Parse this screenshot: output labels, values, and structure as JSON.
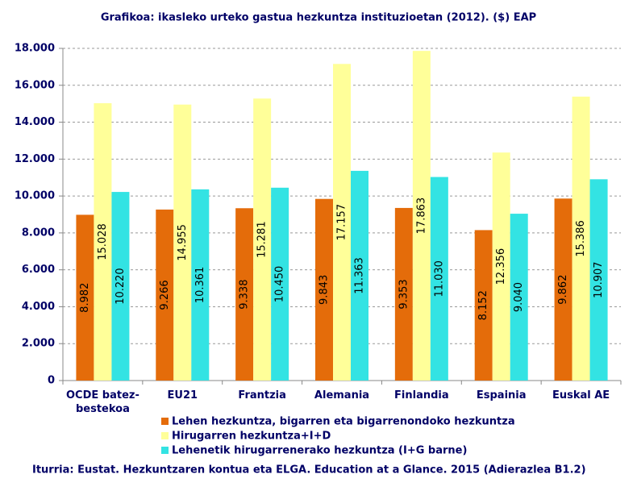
{
  "chart_data": {
    "type": "bar",
    "title": "Grafikoa: ikasleko urteko gastua hezkuntza instituzioetan (2012). ($) EAP",
    "source": "Iturria: Eustat. Hezkuntzaren kontua eta ELGA. Education at a Glance. 2015 (Adierazlea B1.2)",
    "categories": [
      "OCDE batez-bestekoa",
      "EU21",
      "Frantzia",
      "Alemania",
      "Finlandia",
      "Espainia",
      "Euskal AE"
    ],
    "series": [
      {
        "name": "Lehen hezkuntza, bigarren eta bigarrenondoko hezkuntza",
        "color": "#e46c0a",
        "values": [
          8982,
          9266,
          9338,
          9843,
          9353,
          8152,
          9862
        ],
        "value_labels": [
          "8.982",
          "9.266",
          "9.338",
          "9.843",
          "9.353",
          "8.152",
          "9.862"
        ]
      },
      {
        "name": "Hirugarren hezkuntza+I+D",
        "color": "#ffff99",
        "values": [
          15028,
          14955,
          15281,
          17157,
          17863,
          12356,
          15386
        ],
        "value_labels": [
          "15.028",
          "14.955",
          "15.281",
          "17.157",
          "17.863",
          "12.356",
          "15.386"
        ]
      },
      {
        "name": "Lehenetik hirugarrenerako hezkuntza (I+G barne)",
        "color": "#33e3e3",
        "values": [
          10220,
          10361,
          10450,
          11363,
          11030,
          9040,
          10907
        ],
        "value_labels": [
          "10.220",
          "10.361",
          "10.450",
          "11.363",
          "11.030",
          "9.040",
          "10.907"
        ]
      }
    ],
    "ylim": [
      0,
      18000
    ],
    "yticks": [
      0,
      {
        "value": 2000,
        "label": "2.000"
      },
      {
        "value": 4000,
        "label": "4.000"
      },
      {
        "value": 6000,
        "label": "6.000"
      },
      {
        "value": 8000,
        "label": "8.000"
      },
      {
        "value": 10000,
        "label": "10.000"
      },
      {
        "value": 12000,
        "label": "12.000"
      },
      {
        "value": 14000,
        "label": "14.000"
      },
      {
        "value": 16000,
        "label": "16.000"
      },
      {
        "value": 18000,
        "label": "18.000"
      }
    ],
    "grid": true
  }
}
